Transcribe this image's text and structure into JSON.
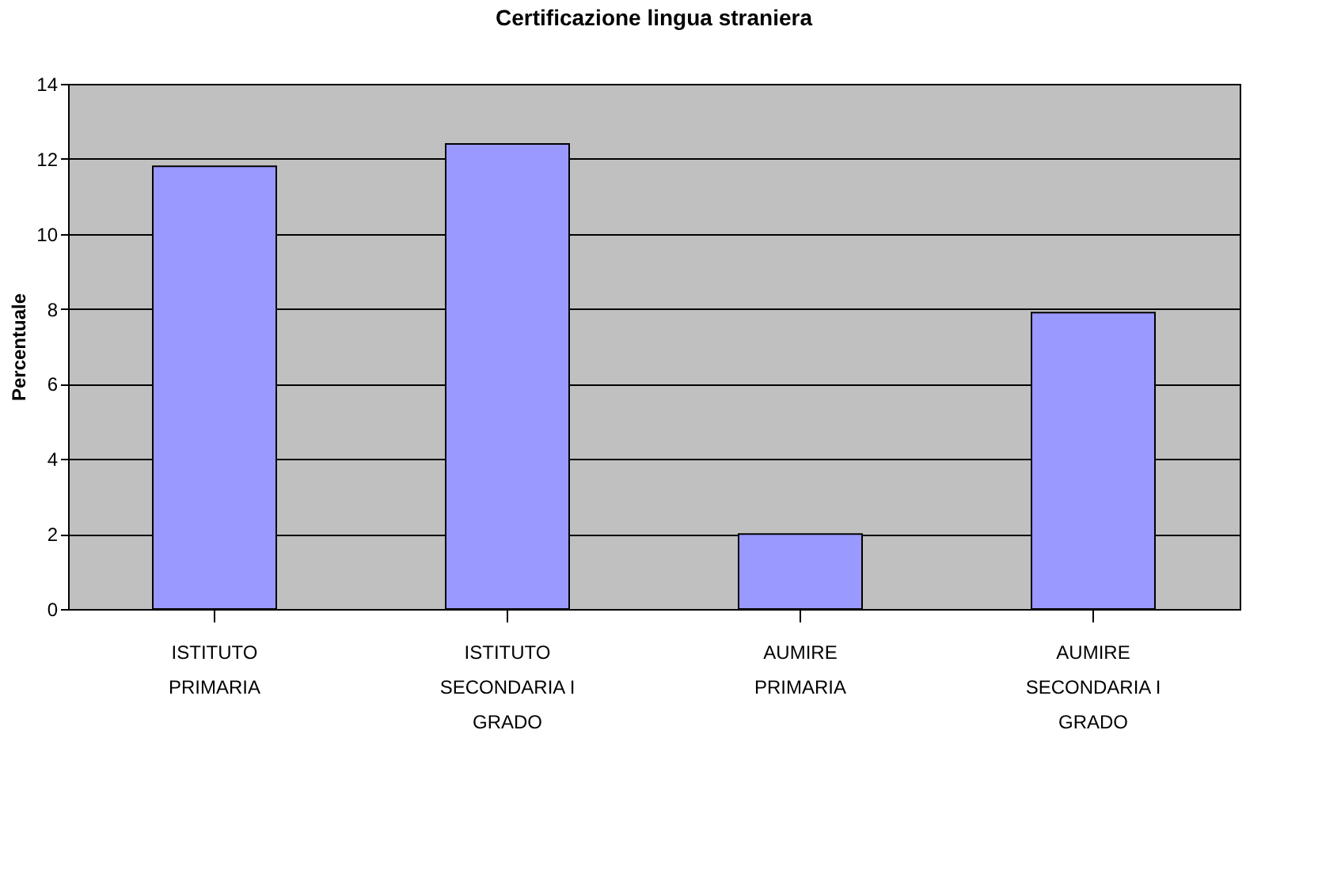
{
  "chart_data": {
    "type": "bar",
    "title": "Certificazione lingua straniera",
    "ylabel": "Percentuale",
    "categories": [
      "ISTITUTO\nPRIMARIA",
      "ISTITUTO\nSECONDARIA I\nGRADO",
      "AUMIRE\nPRIMARIA",
      "AUMIRE\nSECONDARIA I\nGRADO"
    ],
    "values": [
      11.8,
      12.4,
      2.0,
      7.9
    ],
    "color": "#9999ff",
    "ylim": [
      0,
      14
    ],
    "yticks": [
      0,
      2,
      4,
      6,
      8,
      10,
      12,
      14
    ],
    "grid": "y"
  }
}
